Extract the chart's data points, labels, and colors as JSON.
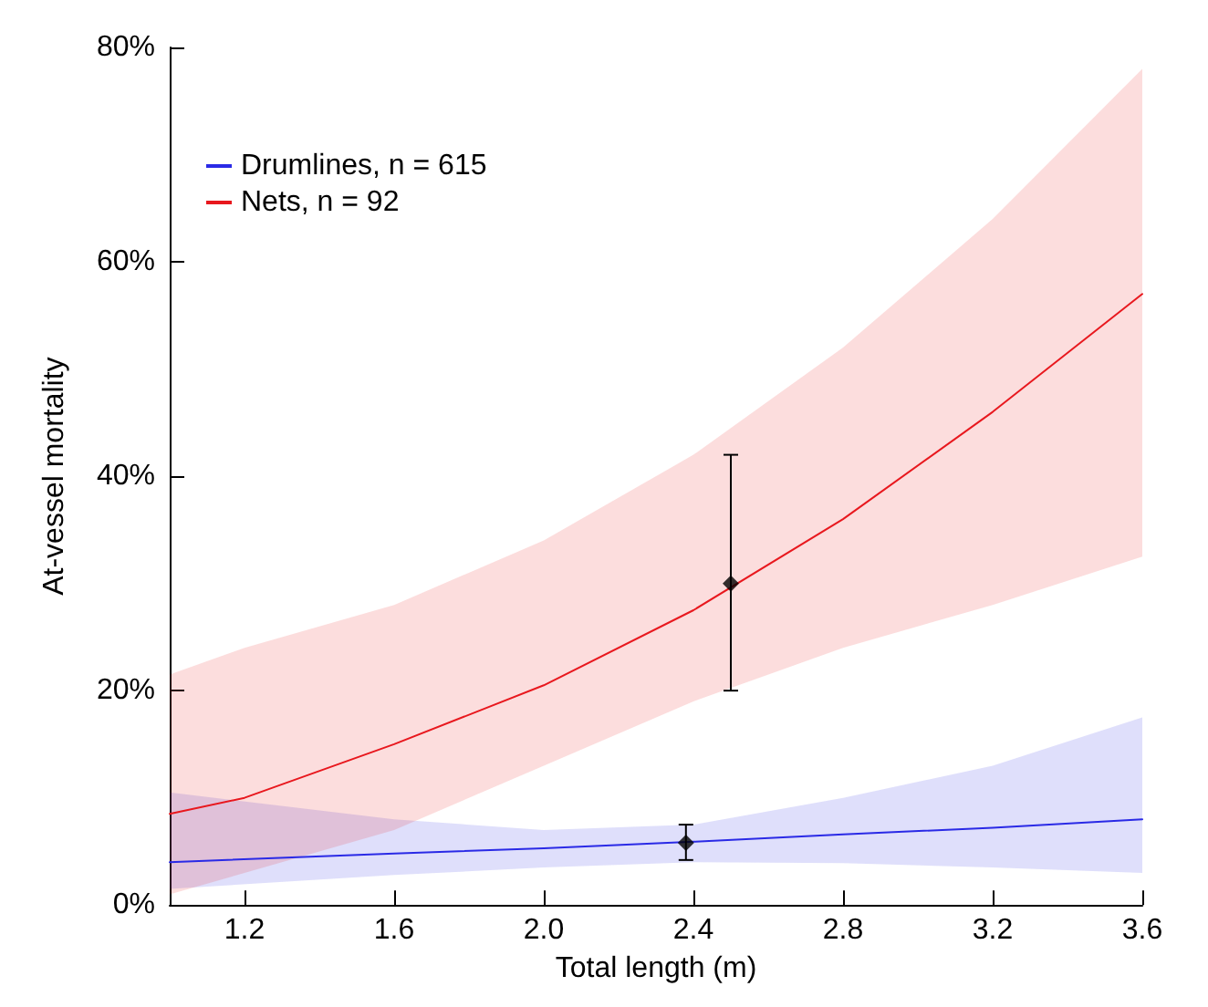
{
  "chart_data": {
    "type": "line",
    "xlabel": "Total length (m)",
    "ylabel": "At-vessel mortality",
    "xlim": [
      1.0,
      3.6
    ],
    "xticks": [
      1.2,
      1.6,
      {
        "value": 2,
        "label": "2.0"
      },
      2.4,
      2.8,
      3.2,
      3.6
    ],
    "ylim": [
      0,
      80
    ],
    "yticks": [
      {
        "value": 0,
        "label": "0%"
      },
      {
        "value": 20,
        "label": "20%"
      },
      {
        "value": 40,
        "label": "40%"
      },
      {
        "value": 60,
        "label": "60%"
      },
      {
        "value": 80,
        "label": "80%"
      }
    ],
    "grid": false,
    "legend": "top left",
    "line_style": "solid",
    "series": [
      {
        "name": "Drumlines, n = 615",
        "color": "#2a2ae6",
        "marker": "none",
        "x": [
          1.0,
          1.6,
          2.0,
          2.4,
          2.8,
          3.2,
          3.6
        ],
        "values": [
          4,
          4.8,
          5.3,
          5.9,
          6.6,
          7.2,
          8
        ],
        "lower": [
          1.5,
          2.8,
          3.5,
          4,
          3.9,
          3.5,
          3
        ],
        "upper": [
          10.5,
          8,
          7,
          7.5,
          10,
          13,
          17.5
        ]
      },
      {
        "name": "Nets, n = 92",
        "color": "#e8181e",
        "marker": "none",
        "x": [
          1.0,
          1.2,
          1.6,
          2.0,
          2.4,
          2.8,
          3.2,
          3.6
        ],
        "values": [
          8.5,
          10,
          15,
          20.5,
          27.5,
          36,
          46,
          57
        ],
        "lower": [
          1,
          3,
          7,
          13,
          19,
          24,
          28,
          32.5
        ],
        "upper": [
          21.5,
          24,
          28,
          34,
          42,
          52,
          64,
          78
        ]
      },
      {
        "type": "scatter",
        "color": "#000000",
        "marker": "diamond",
        "x": [
          2.38
        ],
        "values": [
          5.8
        ],
        "errors": [
          [
            4.2,
            7.5
          ]
        ]
      },
      {
        "type": "scatter",
        "color": "#000000",
        "marker": "diamond",
        "x": [
          2.5
        ],
        "values": [
          30
        ],
        "errors": [
          [
            20,
            42
          ]
        ]
      }
    ]
  }
}
